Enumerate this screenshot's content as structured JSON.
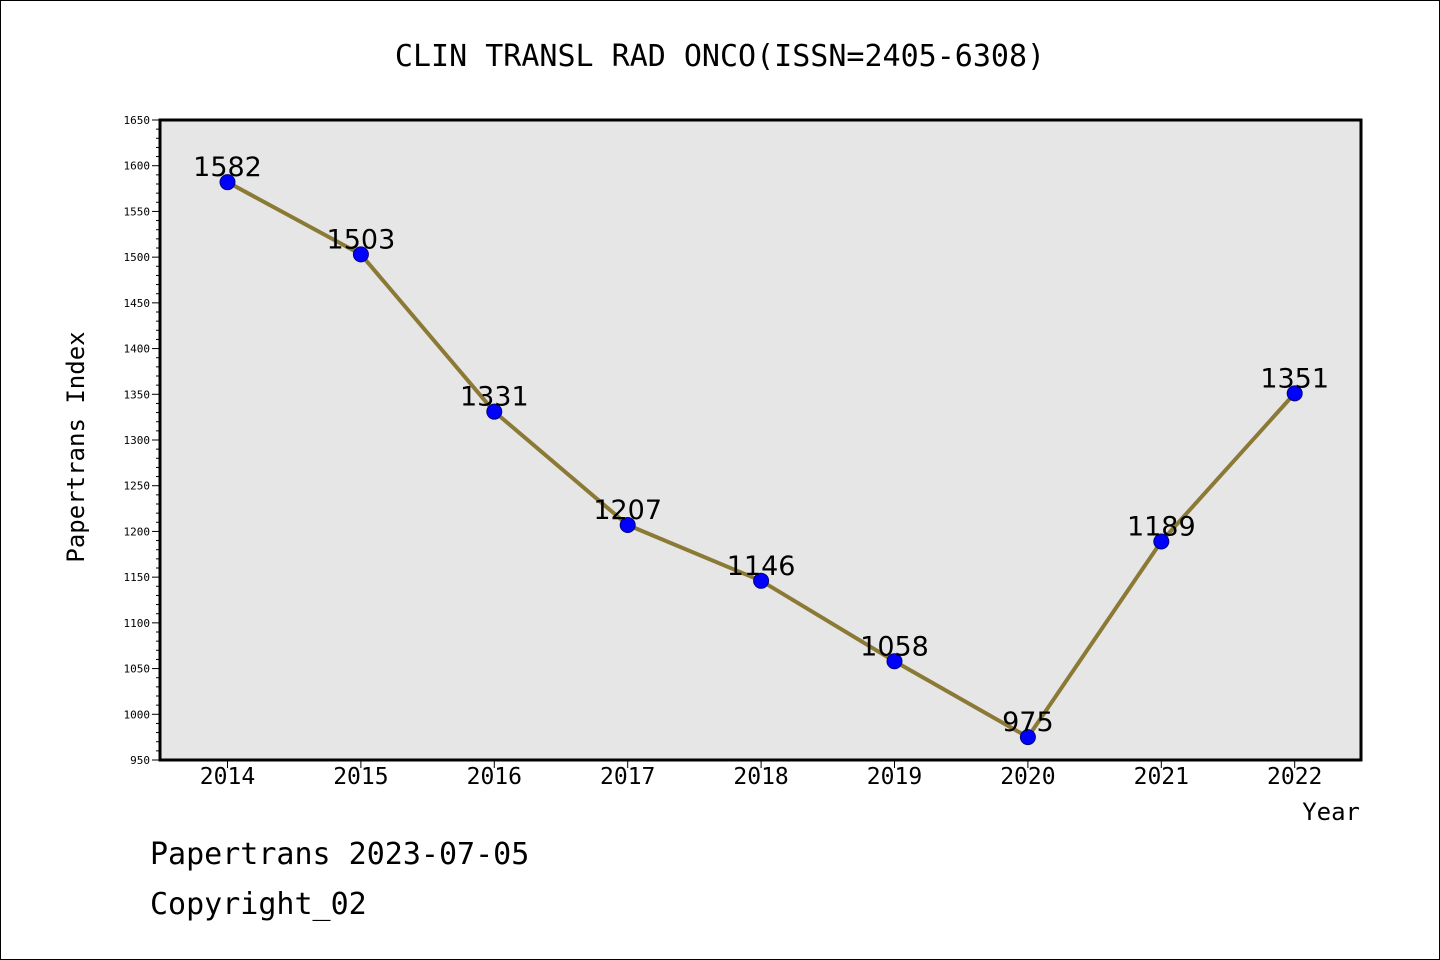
{
  "colors": {
    "background": "#ffffff",
    "plot_background": "#e6e6e6",
    "line": "#8b7a35",
    "marker_fill": "#0000ff",
    "marker_edge": "#000080",
    "frame": "#000000"
  },
  "footer": {
    "line1": "Papertrans 2023-07-05",
    "line2": "Copyright_02"
  },
  "chart_data": {
    "type": "line",
    "title": "CLIN TRANSL RAD ONCO(ISSN=2405-6308)",
    "xlabel": "Year",
    "ylabel": "Papertrans Index",
    "x": [
      "2014",
      "2015",
      "2016",
      "2017",
      "2018",
      "2019",
      "2020",
      "2021",
      "2022"
    ],
    "series": [
      {
        "values": [
          1582,
          1503,
          1331,
          1207,
          1146,
          1058,
          975,
          1189,
          1351
        ]
      }
    ],
    "data_labels": [
      "1582",
      "1503",
      "1331",
      "1207",
      "1146",
      "1058",
      "975",
      "1189",
      "1351"
    ],
    "ylim": [
      950,
      1650
    ],
    "yticks": [
      950,
      1000,
      1050,
      1100,
      1150,
      1200,
      1250,
      1300,
      1350,
      1400,
      1450,
      1500,
      1550,
      1600,
      1650
    ],
    "ytick_labels": [
      "950",
      "1000",
      "1050",
      "1100",
      "1150",
      "1200",
      "1250",
      "1300",
      "1350",
      "1400",
      "1450",
      "1500",
      "1550",
      "1600",
      "1650"
    ],
    "grid": false,
    "legend": "none"
  }
}
